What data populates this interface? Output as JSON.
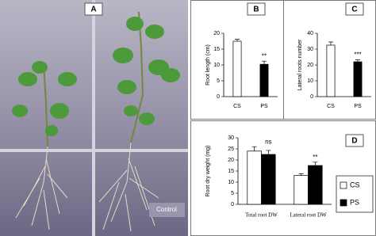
{
  "photo": {
    "panel_label": "A",
    "caption": "Control"
  },
  "chart_data": [
    {
      "type": "bar",
      "panel_label": "B",
      "y_label": "Root length (cm)",
      "categories": [
        "CS",
        "PS"
      ],
      "values": [
        17.5,
        10.2
      ],
      "errors": [
        0.6,
        1.0
      ],
      "colors": [
        "#ffffff",
        "#000000"
      ],
      "annotations": [
        null,
        "**"
      ],
      "ylim": [
        0,
        20
      ],
      "yticks": [
        0,
        5,
        10,
        15,
        20
      ]
    },
    {
      "type": "bar",
      "panel_label": "C",
      "y_label": "Lateral roots number",
      "categories": [
        "CS",
        "PS"
      ],
      "values": [
        32.5,
        22
      ],
      "errors": [
        2,
        1.2
      ],
      "colors": [
        "#ffffff",
        "#000000"
      ],
      "annotations": [
        null,
        "***"
      ],
      "ylim": [
        0,
        40
      ],
      "yticks": [
        0,
        10,
        20,
        30,
        40
      ]
    },
    {
      "type": "bar",
      "panel_label": "D",
      "y_label": "Root dry weight (mg)",
      "categories": [
        "Total root DW",
        "Lateral root DW"
      ],
      "series": [
        {
          "name": "CS",
          "color": "#ffffff",
          "values": [
            24,
            13
          ],
          "errors": [
            2,
            0.8
          ]
        },
        {
          "name": "PS",
          "color": "#000000",
          "values": [
            22.5,
            17.5
          ],
          "errors": [
            1.8,
            1.5
          ]
        }
      ],
      "annotations": [
        "ns",
        "**"
      ],
      "ylim": [
        0,
        30
      ],
      "yticks": [
        0,
        5,
        10,
        15,
        20,
        25,
        30
      ],
      "legend": "right"
    }
  ]
}
